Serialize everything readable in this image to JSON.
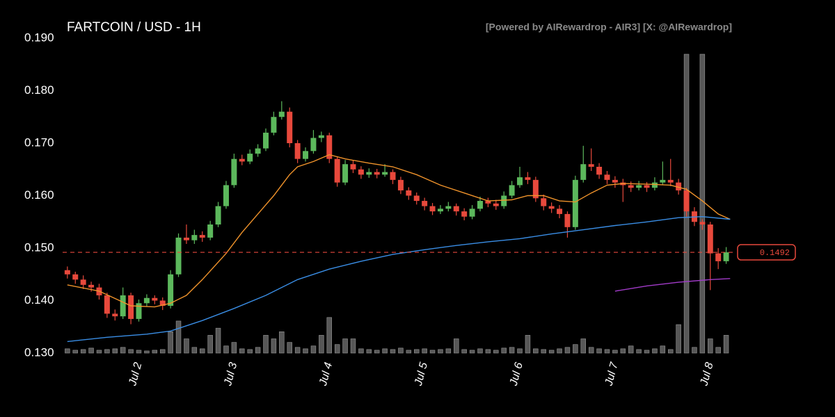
{
  "chart_data": {
    "type": "candlestick",
    "title": "FARTCOIN / USD - 1H",
    "watermark": "[Powered by AIRewardrop - AIR3] [X: @AIRewardrop]",
    "up_color": "#5cb85c",
    "down_color": "#e8493c",
    "volume_color": "#666666",
    "xlim": [
      -1.2,
      168
    ],
    "ylim": [
      0.13,
      0.19
    ],
    "yticks": [
      {
        "value": 0.19,
        "label": "0.190"
      },
      {
        "value": 0.18,
        "label": "0.180"
      },
      {
        "value": 0.17,
        "label": "0.170"
      },
      {
        "value": 0.16,
        "label": "0.160"
      },
      {
        "value": 0.15,
        "label": "0.150"
      },
      {
        "value": 0.14,
        "label": "0.140"
      },
      {
        "value": 0.13,
        "label": "0.130"
      }
    ],
    "xticks": [
      {
        "value": 18,
        "label": "Jul 2"
      },
      {
        "value": 42,
        "label": "Jul 3"
      },
      {
        "value": 66,
        "label": "Jul 4"
      },
      {
        "value": 90,
        "label": "Jul 5"
      },
      {
        "value": 114,
        "label": "Jul 6"
      },
      {
        "value": 138,
        "label": "Jul 7"
      },
      {
        "value": 162,
        "label": "Jul 8"
      }
    ],
    "x": [
      0,
      2,
      4,
      6,
      8,
      10,
      12,
      14,
      16,
      18,
      20,
      22,
      24,
      26,
      28,
      30,
      32,
      34,
      36,
      38,
      40,
      42,
      44,
      46,
      48,
      50,
      52,
      54,
      56,
      58,
      60,
      62,
      64,
      66,
      68,
      70,
      72,
      74,
      76,
      78,
      80,
      82,
      84,
      86,
      88,
      90,
      92,
      94,
      96,
      98,
      100,
      102,
      104,
      106,
      108,
      110,
      112,
      114,
      116,
      118,
      120,
      122,
      124,
      126,
      128,
      130,
      132,
      134,
      136,
      138,
      140,
      142,
      144,
      146,
      148,
      150,
      152,
      154,
      156,
      158,
      160,
      162,
      164,
      166
    ],
    "open": [
      0.1458,
      0.145,
      0.144,
      0.143,
      0.1425,
      0.141,
      0.1375,
      0.137,
      0.141,
      0.1365,
      0.1395,
      0.1405,
      0.14,
      0.139,
      0.145,
      0.152,
      0.1515,
      0.1525,
      0.152,
      0.1545,
      0.158,
      0.162,
      0.167,
      0.1665,
      0.168,
      0.169,
      0.172,
      0.175,
      0.176,
      0.17,
      0.167,
      0.1685,
      0.171,
      0.1715,
      0.167,
      0.1625,
      0.166,
      0.165,
      0.164,
      0.1645,
      0.164,
      0.1645,
      0.163,
      0.161,
      0.16,
      0.159,
      0.158,
      0.157,
      0.1575,
      0.158,
      0.157,
      0.156,
      0.1575,
      0.159,
      0.1585,
      0.158,
      0.16,
      0.162,
      0.1635,
      0.163,
      0.1595,
      0.158,
      0.1575,
      0.1565,
      0.154,
      0.163,
      0.166,
      0.1655,
      0.164,
      0.163,
      0.1625,
      0.162,
      0.1615,
      0.162,
      0.1615,
      0.1625,
      0.163,
      0.1625,
      0.161,
      0.157,
      0.155,
      0.1545,
      0.149,
      0.1475
    ],
    "high": [
      0.1465,
      0.1455,
      0.1448,
      0.1436,
      0.1432,
      0.1415,
      0.1383,
      0.1425,
      0.1415,
      0.1402,
      0.1412,
      0.141,
      0.1406,
      0.1458,
      0.1528,
      0.1545,
      0.1535,
      0.1532,
      0.1552,
      0.1588,
      0.1628,
      0.168,
      0.1678,
      0.1688,
      0.1698,
      0.1728,
      0.176,
      0.178,
      0.1768,
      0.1706,
      0.1692,
      0.1725,
      0.1722,
      0.172,
      0.1675,
      0.1668,
      0.1667,
      0.1656,
      0.1652,
      0.1651,
      0.166,
      0.165,
      0.1636,
      0.1616,
      0.1606,
      0.1596,
      0.1586,
      0.1582,
      0.1588,
      0.1585,
      0.1576,
      0.1582,
      0.1598,
      0.1596,
      0.1592,
      0.1608,
      0.1628,
      0.1655,
      0.1645,
      0.1636,
      0.1602,
      0.1587,
      0.1582,
      0.157,
      0.1638,
      0.1695,
      0.169,
      0.1662,
      0.1647,
      0.1637,
      0.1632,
      0.1627,
      0.1628,
      0.1626,
      0.1635,
      0.1665,
      0.167,
      0.1632,
      0.1615,
      0.1578,
      0.1555,
      0.155,
      0.15,
      0.1502
    ],
    "low": [
      0.1442,
      0.1432,
      0.1422,
      0.1417,
      0.1402,
      0.1367,
      0.1362,
      0.1365,
      0.1355,
      0.136,
      0.1388,
      0.1393,
      0.1382,
      0.1385,
      0.1445,
      0.1508,
      0.1508,
      0.1512,
      0.1515,
      0.154,
      0.1575,
      0.1615,
      0.1658,
      0.166,
      0.1674,
      0.1685,
      0.1715,
      0.1745,
      0.1692,
      0.1662,
      0.1665,
      0.168,
      0.1702,
      0.1662,
      0.1617,
      0.162,
      0.1643,
      0.1632,
      0.1634,
      0.1633,
      0.1636,
      0.1622,
      0.1603,
      0.1592,
      0.1583,
      0.1572,
      0.1563,
      0.1565,
      0.157,
      0.1562,
      0.1553,
      0.1555,
      0.157,
      0.1578,
      0.1573,
      0.1575,
      0.1595,
      0.1615,
      0.1622,
      0.1588,
      0.1572,
      0.1567,
      0.1557,
      0.152,
      0.1535,
      0.1625,
      0.1647,
      0.1632,
      0.1622,
      0.1615,
      0.1588,
      0.1607,
      0.161,
      0.1607,
      0.161,
      0.162,
      0.1618,
      0.1602,
      0.156,
      0.1542,
      0.1535,
      0.142,
      0.146,
      0.147
    ],
    "close": [
      0.145,
      0.144,
      0.143,
      0.1425,
      0.141,
      0.1375,
      0.137,
      0.141,
      0.1365,
      0.1395,
      0.1405,
      0.14,
      0.139,
      0.145,
      0.152,
      0.1515,
      0.1525,
      0.152,
      0.1545,
      0.158,
      0.162,
      0.167,
      0.1665,
      0.168,
      0.169,
      0.172,
      0.175,
      0.176,
      0.17,
      0.167,
      0.1685,
      0.171,
      0.1715,
      0.167,
      0.1625,
      0.166,
      0.165,
      0.164,
      0.1645,
      0.164,
      0.1645,
      0.163,
      0.161,
      0.16,
      0.159,
      0.158,
      0.157,
      0.1575,
      0.158,
      0.157,
      0.156,
      0.1575,
      0.159,
      0.1585,
      0.158,
      0.16,
      0.162,
      0.1635,
      0.163,
      0.1595,
      0.158,
      0.1575,
      0.1565,
      0.154,
      0.163,
      0.166,
      0.1655,
      0.164,
      0.163,
      0.1625,
      0.162,
      0.1615,
      0.162,
      0.1615,
      0.1625,
      0.163,
      0.1625,
      0.161,
      0.157,
      0.155,
      0.1545,
      0.149,
      0.1475,
      0.1492
    ],
    "volume": [
      6,
      4,
      5,
      7,
      4,
      5,
      6,
      8,
      5,
      4,
      3,
      4,
      5,
      30,
      45,
      20,
      8,
      6,
      25,
      35,
      10,
      15,
      6,
      5,
      8,
      25,
      20,
      30,
      15,
      8,
      6,
      10,
      25,
      50,
      12,
      20,
      20,
      6,
      5,
      4,
      6,
      5,
      7,
      4,
      5,
      6,
      4,
      5,
      6,
      20,
      5,
      4,
      6,
      5,
      4,
      7,
      8,
      6,
      25,
      6,
      5,
      4,
      6,
      8,
      12,
      20,
      8,
      6,
      5,
      4,
      6,
      10,
      5,
      4,
      6,
      10,
      5,
      40,
      420,
      8,
      420,
      20,
      8,
      25
    ],
    "lines": [
      {
        "color": "#f0932b",
        "x": [
          0,
          8,
          16,
          22,
          26,
          30,
          34,
          40,
          44,
          48,
          52,
          56,
          58,
          62,
          66,
          70,
          76,
          82,
          88,
          94,
          100,
          106,
          112,
          116,
          120,
          124,
          128,
          132,
          136,
          140,
          146,
          152,
          156,
          160,
          164,
          167
        ],
        "values": [
          0.143,
          0.1418,
          0.139,
          0.1388,
          0.1395,
          0.141,
          0.144,
          0.149,
          0.153,
          0.1565,
          0.16,
          0.164,
          0.1655,
          0.1665,
          0.1678,
          0.167,
          0.1662,
          0.1655,
          0.164,
          0.162,
          0.1605,
          0.159,
          0.1592,
          0.16,
          0.16,
          0.159,
          0.1588,
          0.1605,
          0.162,
          0.1623,
          0.1622,
          0.162,
          0.1612,
          0.159,
          0.1565,
          0.1555
        ]
      },
      {
        "color": "#3a8ee6",
        "x": [
          0,
          10,
          20,
          26,
          34,
          42,
          50,
          58,
          66,
          74,
          82,
          90,
          98,
          106,
          114,
          122,
          130,
          138,
          146,
          154,
          160,
          167
        ],
        "values": [
          0.1322,
          0.133,
          0.1336,
          0.1342,
          0.1362,
          0.1385,
          0.141,
          0.144,
          0.146,
          0.1475,
          0.1488,
          0.1497,
          0.1505,
          0.1512,
          0.1518,
          0.1527,
          0.1535,
          0.1543,
          0.155,
          0.1558,
          0.156,
          0.1555
        ]
      },
      {
        "color": "#a23bc9",
        "x": [
          138,
          146,
          154,
          162,
          167
        ],
        "values": [
          0.1418,
          0.1428,
          0.1435,
          0.144,
          0.1442
        ]
      }
    ],
    "last_price": 0.1492,
    "last_price_color": "#e8493c"
  }
}
